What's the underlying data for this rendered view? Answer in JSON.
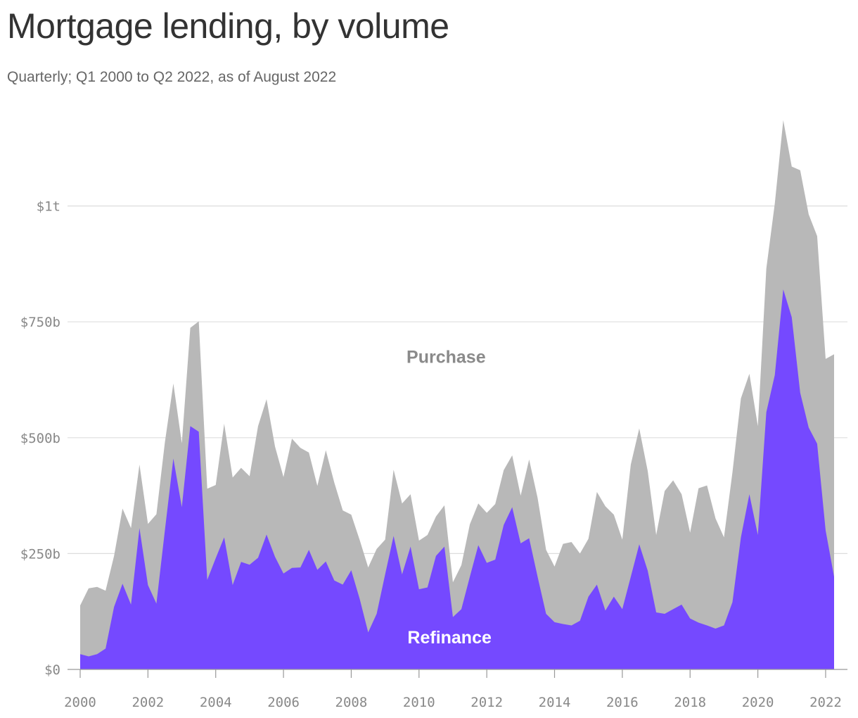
{
  "title": "Mortgage lending, by volume",
  "subtitle": "Quarterly; Q1 2000 to Q2 2022, as of August 2022",
  "colors": {
    "purchase": "#b8b8b8",
    "refinance": "#7549ff",
    "grid": "#dddddd",
    "axis": "#999999",
    "purchase_label": "#8a8a8a",
    "refinance_label": "#ffffff"
  },
  "chart_data": {
    "type": "area",
    "stacked": true,
    "x_start": 2000,
    "x_step": 0.25,
    "xlim": [
      2000,
      2022.25
    ],
    "ylim": [
      0,
      1200
    ],
    "y_unit": "billions USD",
    "x_ticks": [
      2000,
      2002,
      2004,
      2006,
      2008,
      2010,
      2012,
      2014,
      2016,
      2018,
      2020,
      2022
    ],
    "x_tick_labels": [
      "2000",
      "2002",
      "2004",
      "2006",
      "2008",
      "2010",
      "2012",
      "2014",
      "2016",
      "2018",
      "2020",
      "2022"
    ],
    "y_ticks": [
      0,
      250,
      500,
      750,
      1000
    ],
    "y_tick_labels": [
      "$0",
      "$250b",
      "$500b",
      "$750b",
      "$1t"
    ],
    "grid": "horizontal",
    "area_labels": [
      "Purchase",
      "Refinance"
    ],
    "series": [
      {
        "name": "Refinance",
        "color": "#7549ff",
        "values": [
          33,
          28,
          33,
          45,
          135,
          185,
          140,
          305,
          182,
          142,
          300,
          455,
          350,
          525,
          513,
          193,
          240,
          285,
          182,
          232,
          226,
          241,
          291,
          243,
          207,
          219,
          220,
          258,
          215,
          233,
          192,
          183,
          214,
          152,
          80,
          120,
          205,
          288,
          205,
          265,
          173,
          177,
          245,
          265,
          113,
          130,
          200,
          268,
          230,
          237,
          312,
          350,
          272,
          283,
          200,
          120,
          102,
          98,
          95,
          105,
          157,
          183,
          127,
          157,
          130,
          200,
          270,
          213,
          123,
          120,
          130,
          140,
          110,
          101,
          95,
          88,
          95,
          145,
          285,
          378,
          290,
          555,
          635,
          820,
          760,
          597,
          522,
          487,
          300,
          200
        ]
      },
      {
        "name": "Purchase",
        "color": "#b8b8b8",
        "values": [
          105,
          147,
          145,
          125,
          110,
          162,
          165,
          137,
          132,
          193,
          190,
          162,
          138,
          212,
          238,
          197,
          158,
          245,
          232,
          203,
          191,
          284,
          292,
          238,
          208,
          279,
          258,
          210,
          181,
          240,
          211,
          160,
          120,
          127,
          140,
          140,
          75,
          143,
          153,
          113,
          105,
          113,
          85,
          89,
          75,
          95,
          113,
          90,
          108,
          120,
          118,
          112,
          103,
          170,
          170,
          138,
          120,
          173,
          180,
          145,
          125,
          200,
          225,
          177,
          150,
          242,
          250,
          215,
          167,
          265,
          278,
          238,
          185,
          290,
          302,
          238,
          190,
          280,
          300,
          260,
          235,
          310,
          370,
          365,
          325,
          480,
          460,
          448,
          370,
          480
        ]
      }
    ]
  }
}
